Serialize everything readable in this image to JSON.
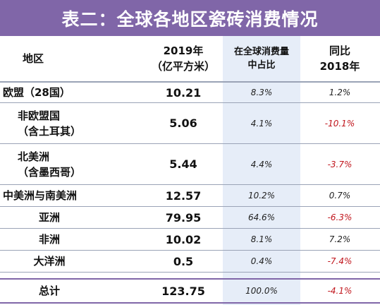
{
  "title": "表二：全球各地区瓷砖消费情况",
  "headers": {
    "region": "地区",
    "value": "2019年\n（亿平方米）",
    "share": "在全球消费量\n中占比",
    "yoy": "同比\n2018年"
  },
  "rows": [
    {
      "region": "欧盟（28国）",
      "value": "10.21",
      "share": "8.3%",
      "yoy": "1.2%"
    },
    {
      "region": "非欧盟国\n（含土耳其）",
      "value": "5.06",
      "share": "4.1%",
      "yoy": "-10.1%"
    },
    {
      "region": "北美洲\n（含墨西哥）",
      "value": "5.44",
      "share": "4.4%",
      "yoy": "-3.7%"
    },
    {
      "region": "中美洲与南美洲",
      "value": "12.57",
      "share": "10.2%",
      "yoy": "0.7%"
    },
    {
      "region": "亚洲",
      "value": "79.95",
      "share": "64.6%",
      "yoy": "-6.3%"
    },
    {
      "region": "非洲",
      "value": "10.02",
      "share": "8.1%",
      "yoy": "7.2%"
    },
    {
      "region": "大洋洲",
      "value": "0.5",
      "share": "0.4%",
      "yoy": "-7.4%"
    }
  ],
  "total": {
    "region": "总计",
    "value": "123.75",
    "share": "100.0%",
    "yoy": "-4.1%"
  },
  "colors": {
    "header_bg": "#8066a8",
    "shade": "#e6edf8",
    "negative": "#c0141b"
  }
}
